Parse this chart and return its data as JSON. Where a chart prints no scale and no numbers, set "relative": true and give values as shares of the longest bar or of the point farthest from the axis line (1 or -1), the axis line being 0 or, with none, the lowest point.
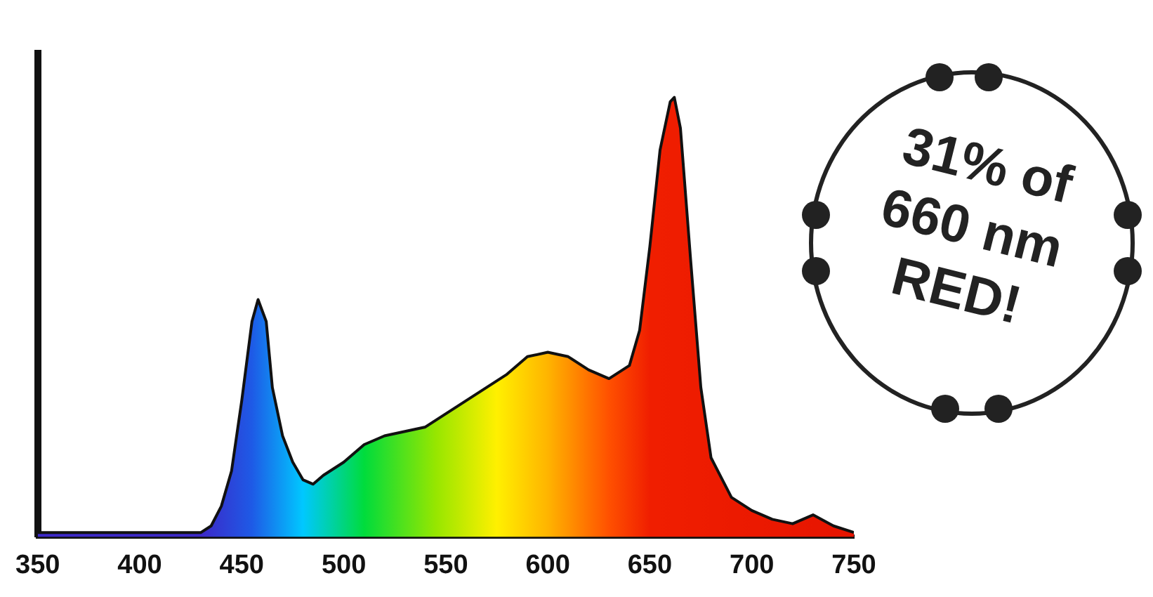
{
  "chart_data": {
    "type": "area",
    "relative": true,
    "xlim": [
      350,
      750
    ],
    "xticks": [
      350,
      400,
      450,
      500,
      550,
      600,
      650,
      700,
      750
    ],
    "grid": false,
    "legend": false,
    "annotations": [
      "31% of 660 nm RED!"
    ],
    "series": [
      {
        "color": "#111111",
        "x": [
          350,
          380,
          400,
          420,
          430,
          435,
          440,
          445,
          450,
          455,
          458,
          462,
          465,
          470,
          475,
          480,
          485,
          490,
          500,
          510,
          520,
          540,
          560,
          580,
          590,
          600,
          610,
          620,
          630,
          640,
          645,
          650,
          655,
          660,
          662,
          665,
          670,
          675,
          680,
          690,
          700,
          710,
          720,
          730,
          740,
          750
        ],
        "values": [
          0.01,
          0.01,
          0.01,
          0.01,
          0.01,
          0.025,
          0.07,
          0.15,
          0.31,
          0.49,
          0.54,
          0.49,
          0.34,
          0.23,
          0.17,
          0.13,
          0.12,
          0.14,
          0.17,
          0.21,
          0.23,
          0.25,
          0.31,
          0.37,
          0.41,
          0.42,
          0.41,
          0.38,
          0.36,
          0.39,
          0.47,
          0.66,
          0.88,
          0.99,
          1,
          0.93,
          0.63,
          0.34,
          0.18,
          0.09,
          0.06,
          0.04,
          0.03,
          0.05,
          0.025,
          0.01
        ]
      }
    ]
  }
}
